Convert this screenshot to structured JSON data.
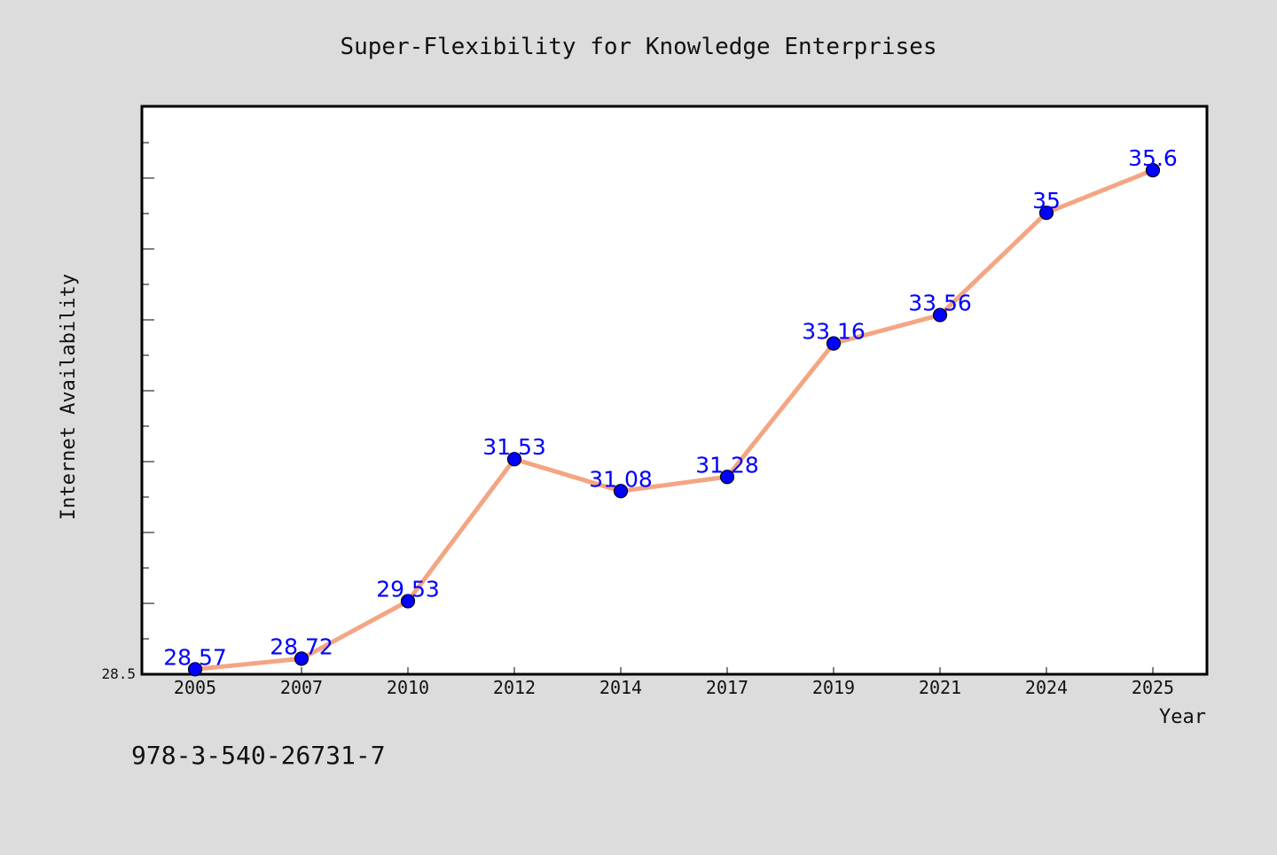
{
  "chart_data": {
    "type": "line",
    "title": "Super-Flexibility for Knowledge Enterprises",
    "xlabel": "Year",
    "ylabel": "Internet Availability",
    "categories": [
      "2005",
      "2007",
      "2010",
      "2012",
      "2014",
      "2017",
      "2019",
      "2021",
      "2024",
      "2025"
    ],
    "series": [
      {
        "values": [
          28.57,
          28.72,
          29.53,
          31.53,
          31.08,
          31.28,
          33.16,
          33.56,
          35,
          35.6
        ]
      }
    ],
    "y_tick_labels": [
      "28.5"
    ],
    "ylim": [
      28.5,
      36.5
    ],
    "data_labels": [
      "28.57",
      "28.72",
      "29.53",
      "31.53",
      "31.08",
      "31.28",
      "33.16",
      "33.56",
      "35",
      "35.6"
    ],
    "grid": false,
    "colors": {
      "background": "#dcdcdc",
      "plot_area": "#ffffff",
      "line": "#f4a582",
      "marker": "#0000ff",
      "data_label": "#0000ff"
    }
  },
  "footer": {
    "isbn": "978-3-540-26731-7"
  }
}
